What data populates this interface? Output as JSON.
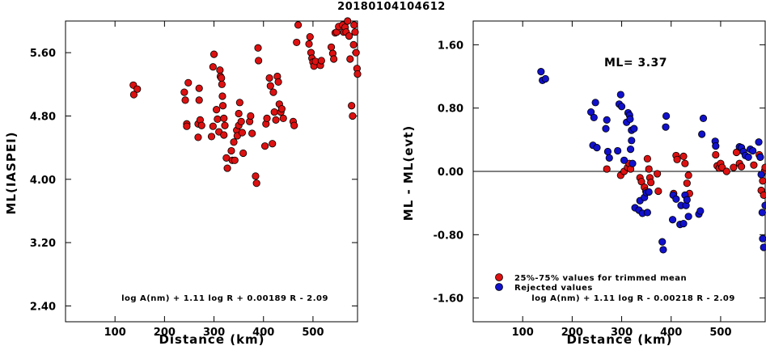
{
  "figure": {
    "title": "20180104104612"
  },
  "colors": {
    "red": "#dd1111",
    "blue": "#1111cc",
    "edge": "#000000"
  },
  "chart_data": [
    {
      "type": "scatter",
      "title": "",
      "xlabel": "Distance (km)",
      "ylabel": "ML(IASPEI)",
      "xlim": [
        0,
        590
      ],
      "ylim": [
        2.2,
        6.0
      ],
      "xticks": [
        100,
        200,
        300,
        400,
        500
      ],
      "yticks": [
        2.4,
        3.2,
        4.0,
        4.8,
        5.6
      ],
      "xtick_labels": [
        "100",
        "200",
        "300",
        "400",
        "500"
      ],
      "ytick_labels": [
        "2.40",
        "3.20",
        "4.00",
        "4.80",
        "5.60"
      ],
      "formula": "log A(nm) + 1.11 log R + 0.00189 R - 2.09",
      "series": [
        {
          "color": "red",
          "points": [
            [
              137,
              5.19
            ],
            [
              145,
              5.14
            ],
            [
              138,
              5.07
            ],
            [
              240,
              5.1
            ],
            [
              242,
              5.0
            ],
            [
              245,
              4.7
            ],
            [
              245,
              4.67
            ],
            [
              248,
              5.22
            ],
            [
              268,
              4.7
            ],
            [
              268,
              4.53
            ],
            [
              270,
              5.15
            ],
            [
              270,
              5.0
            ],
            [
              272,
              4.75
            ],
            [
              275,
              4.68
            ],
            [
              295,
              4.54
            ],
            [
              298,
              4.67
            ],
            [
              298,
              5.42
            ],
            [
              300,
              5.58
            ],
            [
              305,
              4.88
            ],
            [
              307,
              4.76
            ],
            [
              310,
              4.6
            ],
            [
              312,
              5.38
            ],
            [
              313,
              5.3
            ],
            [
              315,
              5.28
            ],
            [
              316,
              5.2
            ],
            [
              317,
              5.05
            ],
            [
              318,
              4.93
            ],
            [
              320,
              4.77
            ],
            [
              320,
              4.56
            ],
            [
              322,
              4.68
            ],
            [
              325,
              4.27
            ],
            [
              327,
              4.14
            ],
            [
              335,
              4.36
            ],
            [
              337,
              4.24
            ],
            [
              340,
              4.47
            ],
            [
              342,
              4.24
            ],
            [
              346,
              4.62
            ],
            [
              347,
              4.55
            ],
            [
              350,
              4.83
            ],
            [
              350,
              4.68
            ],
            [
              352,
              4.97
            ],
            [
              355,
              4.73
            ],
            [
              357,
              4.59
            ],
            [
              359,
              4.33
            ],
            [
              372,
              4.73
            ],
            [
              374,
              4.8
            ],
            [
              377,
              4.58
            ],
            [
              384,
              4.04
            ],
            [
              386,
              3.95
            ],
            [
              389,
              5.66
            ],
            [
              390,
              5.5
            ],
            [
              403,
              4.42
            ],
            [
              405,
              4.7
            ],
            [
              407,
              4.77
            ],
            [
              412,
              5.28
            ],
            [
              414,
              5.18
            ],
            [
              418,
              4.45
            ],
            [
              420,
              5.1
            ],
            [
              422,
              4.85
            ],
            [
              425,
              4.75
            ],
            [
              428,
              5.3
            ],
            [
              430,
              5.23
            ],
            [
              432,
              4.95
            ],
            [
              435,
              4.85
            ],
            [
              437,
              4.89
            ],
            [
              440,
              4.77
            ],
            [
              460,
              4.73
            ],
            [
              462,
              4.68
            ],
            [
              467,
              5.73
            ],
            [
              470,
              5.95
            ],
            [
              492,
              5.71
            ],
            [
              494,
              5.8
            ],
            [
              496,
              5.6
            ],
            [
              498,
              5.53
            ],
            [
              500,
              5.48
            ],
            [
              502,
              5.43
            ],
            [
              505,
              5.49
            ],
            [
              515,
              5.44
            ],
            [
              517,
              5.5
            ],
            [
              537,
              5.67
            ],
            [
              540,
              5.59
            ],
            [
              542,
              5.52
            ],
            [
              545,
              5.85
            ],
            [
              548,
              5.86
            ],
            [
              552,
              5.93
            ],
            [
              560,
              5.95
            ],
            [
              562,
              5.86
            ],
            [
              565,
              5.92
            ],
            [
              567,
              5.86
            ],
            [
              570,
              6.0
            ],
            [
              573,
              5.81
            ],
            [
              575,
              5.52
            ],
            [
              578,
              4.93
            ],
            [
              580,
              4.8
            ],
            [
              582,
              5.7
            ],
            [
              583,
              5.95
            ],
            [
              585,
              5.86
            ],
            [
              587,
              5.6
            ],
            [
              589,
              5.4
            ],
            [
              590,
              5.33
            ]
          ]
        }
      ]
    },
    {
      "type": "scatter",
      "title": "",
      "xlabel": "Distance (km)",
      "ylabel": "ML - ML(evt)",
      "xlim": [
        0,
        590
      ],
      "ylim": [
        -1.9,
        1.9
      ],
      "xticks": [
        100,
        200,
        300,
        400,
        500
      ],
      "yticks": [
        -1.6,
        -0.8,
        0.0,
        0.8,
        1.6
      ],
      "xtick_labels": [
        "100",
        "200",
        "300",
        "400",
        "500"
      ],
      "ytick_labels": [
        "-1.60",
        "-0.80",
        "0.00",
        "0.80",
        "1.60"
      ],
      "annotation": "ML= 3.37",
      "formula": "log A(nm) + 1.11 log R - 0.00218 R - 2.09",
      "hline": 0.0,
      "legend": {
        "position": "bottom-left",
        "entries": [
          {
            "label": "25%-75% values for trimmed mean",
            "color": "red"
          },
          {
            "label": "Rejected values",
            "color": "blue"
          }
        ]
      },
      "series": [
        {
          "color": "red",
          "points": [
            [
              270,
              0.03
            ],
            [
              298,
              -0.05
            ],
            [
              305,
              0.0
            ],
            [
              312,
              0.05
            ],
            [
              315,
              0.1
            ],
            [
              318,
              0.03
            ],
            [
              337,
              -0.08
            ],
            [
              340,
              -0.13
            ],
            [
              346,
              -0.2
            ],
            [
              349,
              -0.25
            ],
            [
              352,
              0.16
            ],
            [
              355,
              0.03
            ],
            [
              357,
              -0.08
            ],
            [
              359,
              -0.14
            ],
            [
              372,
              -0.03
            ],
            [
              374,
              -0.25
            ],
            [
              405,
              -0.28
            ],
            [
              410,
              0.2
            ],
            [
              412,
              0.15
            ],
            [
              425,
              0.19
            ],
            [
              428,
              0.1
            ],
            [
              432,
              -0.15
            ],
            [
              435,
              -0.05
            ],
            [
              437,
              -0.28
            ],
            [
              490,
              0.21
            ],
            [
              493,
              0.07
            ],
            [
              497,
              0.04
            ],
            [
              500,
              0.1
            ],
            [
              503,
              0.05
            ],
            [
              512,
              0.0
            ],
            [
              526,
              0.05
            ],
            [
              532,
              0.24
            ],
            [
              538,
              0.1
            ],
            [
              542,
              0.06
            ],
            [
              567,
              0.08
            ],
            [
              578,
              0.21
            ],
            [
              580,
              0.18
            ],
            [
              582,
              -0.24
            ],
            [
              585,
              -0.12
            ],
            [
              587,
              -0.3
            ],
            [
              589,
              0.01
            ],
            [
              590,
              0.05
            ]
          ]
        },
        {
          "color": "blue",
          "points": [
            [
              137,
              1.26
            ],
            [
              140,
              1.15
            ],
            [
              146,
              1.17
            ],
            [
              238,
              0.75
            ],
            [
              242,
              0.33
            ],
            [
              244,
              0.68
            ],
            [
              247,
              0.87
            ],
            [
              250,
              0.3
            ],
            [
              268,
              0.54
            ],
            [
              270,
              0.65
            ],
            [
              272,
              0.25
            ],
            [
              275,
              0.17
            ],
            [
              292,
              0.26
            ],
            [
              295,
              0.85
            ],
            [
              298,
              0.97
            ],
            [
              300,
              0.82
            ],
            [
              305,
              0.14
            ],
            [
              310,
              0.62
            ],
            [
              313,
              0.74
            ],
            [
              316,
              0.71
            ],
            [
              317,
              0.66
            ],
            [
              318,
              0.28
            ],
            [
              320,
              0.52
            ],
            [
              320,
              0.39
            ],
            [
              322,
              0.1
            ],
            [
              325,
              0.54
            ],
            [
              327,
              -0.46
            ],
            [
              335,
              -0.49
            ],
            [
              337,
              -0.37
            ],
            [
              342,
              -0.53
            ],
            [
              346,
              -0.33
            ],
            [
              350,
              -0.27
            ],
            [
              352,
              -0.52
            ],
            [
              355,
              -0.26
            ],
            [
              382,
              -0.89
            ],
            [
              384,
              -0.99
            ],
            [
              389,
              0.56
            ],
            [
              390,
              0.7
            ],
            [
              403,
              -0.61
            ],
            [
              404,
              -0.3
            ],
            [
              410,
              -0.35
            ],
            [
              418,
              -0.67
            ],
            [
              420,
              -0.43
            ],
            [
              425,
              -0.66
            ],
            [
              428,
              -0.3
            ],
            [
              430,
              -0.43
            ],
            [
              432,
              -0.36
            ],
            [
              435,
              -0.57
            ],
            [
              456,
              -0.54
            ],
            [
              459,
              -0.5
            ],
            [
              462,
              0.47
            ],
            [
              465,
              0.67
            ],
            [
              489,
              0.38
            ],
            [
              490,
              0.32
            ],
            [
              538,
              0.31
            ],
            [
              542,
              0.3
            ],
            [
              546,
              0.25
            ],
            [
              550,
              0.2
            ],
            [
              556,
              0.18
            ],
            [
              560,
              0.28
            ],
            [
              565,
              0.26
            ],
            [
              577,
              0.37
            ],
            [
              580,
              0.18
            ],
            [
              582,
              -0.04
            ],
            [
              584,
              -0.52
            ],
            [
              585,
              -0.85
            ],
            [
              587,
              -0.96
            ],
            [
              590,
              -0.43
            ]
          ]
        }
      ]
    }
  ]
}
